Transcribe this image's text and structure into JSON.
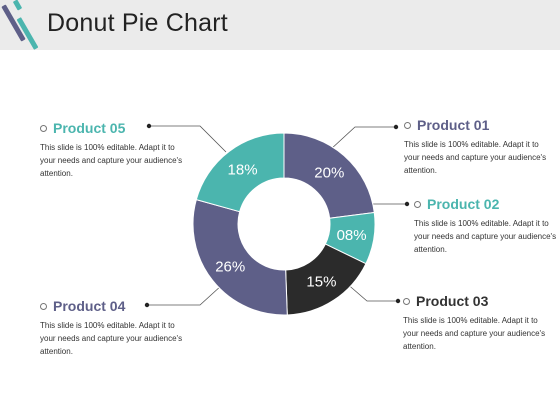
{
  "title": "Donut Pie Chart",
  "description_text": "This slide is 100% editable. Adapt it to your needs and capture your audience's attention.",
  "colors": {
    "teal": "#4bb5ae",
    "purple": "#5e5f88",
    "black": "#2b2b2b",
    "header_bg": "#ebebeb"
  },
  "products": {
    "p01": {
      "name": "Product 01",
      "desc": "This slide is 100% editable. Adapt it to your needs and capture your audience's attention."
    },
    "p02": {
      "name": "Product 02",
      "desc": "This slide is 100% editable. Adapt it to your needs and capture your audience's attention."
    },
    "p03": {
      "name": "Product 03",
      "desc": "This slide is 100% editable. Adapt it to your needs and capture your audience's attention."
    },
    "p04": {
      "name": "Product 04",
      "desc": "This slide is 100% editable. Adapt it to your needs and capture your audience's attention."
    },
    "p05": {
      "name": "Product 05",
      "desc": "This slide is 100% editable. Adapt it to your needs and capture your audience's attention."
    }
  },
  "chart_data": {
    "type": "pie",
    "donut": true,
    "categories": [
      "Product 01",
      "Product 02",
      "Product 03",
      "Product 04",
      "Product 05"
    ],
    "values": [
      20,
      8,
      15,
      26,
      18
    ],
    "labels": [
      "20%",
      "08%",
      "15%",
      "26%",
      "18%"
    ],
    "colors": [
      "#5e5f88",
      "#4bb5ae",
      "#2b2b2b",
      "#5e5f88",
      "#4bb5ae"
    ]
  }
}
